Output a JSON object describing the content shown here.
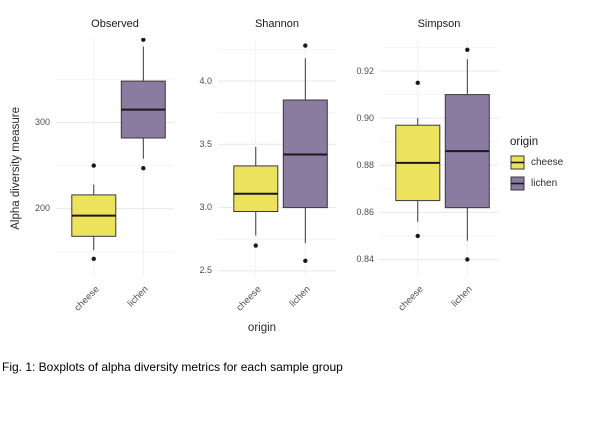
{
  "caption": "Fig. 1: Boxplots of alpha diversity metrics for each sample group",
  "legend": {
    "title": "origin",
    "entries": [
      {
        "label": "cheese",
        "color": "#EDE25C"
      },
      {
        "label": "lichen",
        "color": "#8A7BA0"
      }
    ]
  },
  "chart_data": {
    "type": "boxplot",
    "title": "",
    "xlabel": "origin",
    "ylabel": "Alpha diversity measure",
    "facet_by": "alpha diversity metric",
    "group_by": "origin",
    "groups": [
      "cheese",
      "lichen"
    ],
    "colors": {
      "cheese": "#EDE25C",
      "lichen": "#8A7BA0"
    },
    "style": {
      "grid_major": "#e7e7e7",
      "grid_minor": "#f4f4f4",
      "box_stroke": "#3a3a3a",
      "median_stroke": "#1a1a1a",
      "outlier_fill": "#1a1a1a",
      "legend_position": "right"
    },
    "facets": [
      {
        "label": "Observed",
        "ylim": [
          122,
          398
        ],
        "yticks": [
          {
            "label": "200",
            "value": 200
          },
          {
            "label": "300",
            "value": 300
          }
        ],
        "boxes": [
          {
            "group": "cheese",
            "whisker_low": 152,
            "q1": 168,
            "median": 192,
            "q3": 216,
            "whisker_high": 228,
            "outliers": [
              250,
              142
            ]
          },
          {
            "group": "lichen",
            "whisker_low": 258,
            "q1": 282,
            "median": 315,
            "q3": 348,
            "whisker_high": 388,
            "outliers": [
              396,
              247
            ]
          }
        ]
      },
      {
        "label": "Shannon",
        "ylim": [
          2.46,
          4.34
        ],
        "yticks": [
          {
            "label": "2.5",
            "value": 2.5
          },
          {
            "label": "3.0",
            "value": 3.0
          },
          {
            "label": "3.5",
            "value": 3.5
          },
          {
            "label": "4.0",
            "value": 4.0
          }
        ],
        "boxes": [
          {
            "group": "cheese",
            "whisker_low": 2.78,
            "q1": 2.97,
            "median": 3.11,
            "q3": 3.33,
            "whisker_high": 3.48,
            "outliers": [
              2.7
            ]
          },
          {
            "group": "lichen",
            "whisker_low": 2.72,
            "q1": 3.0,
            "median": 3.42,
            "q3": 3.85,
            "whisker_high": 4.18,
            "outliers": [
              4.28,
              2.58
            ]
          }
        ]
      },
      {
        "label": "Simpson",
        "ylim": [
          0.833,
          0.934
        ],
        "yticks": [
          {
            "label": "0.84",
            "value": 0.84
          },
          {
            "label": "0.86",
            "value": 0.86
          },
          {
            "label": "0.88",
            "value": 0.88
          },
          {
            "label": "0.90",
            "value": 0.9
          },
          {
            "label": "0.92",
            "value": 0.92
          }
        ],
        "boxes": [
          {
            "group": "cheese",
            "whisker_low": 0.856,
            "q1": 0.865,
            "median": 0.881,
            "q3": 0.897,
            "whisker_high": 0.9,
            "outliers": [
              0.915,
              0.85
            ]
          },
          {
            "group": "lichen",
            "whisker_low": 0.848,
            "q1": 0.862,
            "median": 0.886,
            "q3": 0.91,
            "whisker_high": 0.925,
            "outliers": [
              0.929,
              0.84
            ]
          }
        ]
      }
    ]
  }
}
